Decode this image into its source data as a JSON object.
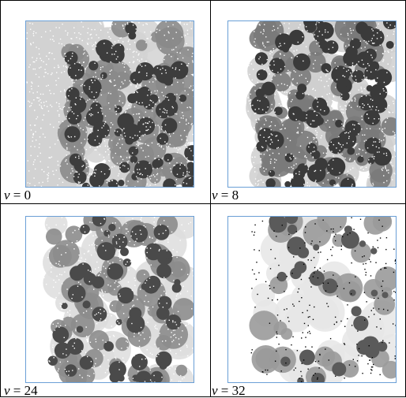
{
  "panels": [
    {
      "id": "p0",
      "label_var": "v",
      "label_rest": " = 0",
      "colors": {
        "dark": "#3d3d3d",
        "mid": "#8a8a8a",
        "light": "#d2d2d2",
        "dot": "#ffffff"
      }
    },
    {
      "id": "p1",
      "label_var": "v",
      "label_rest": " = 8",
      "colors": {
        "dark": "#3a3a3a",
        "mid": "#7a7a7a",
        "light": "#cfcfcf",
        "dot": "#ffffff"
      }
    },
    {
      "id": "p2",
      "label_var": "v",
      "label_rest": " = 24",
      "colors": {
        "dark": "#4a4a4a",
        "mid": "#8c8c8c",
        "light": "#dddddd",
        "dot": "#ffffff"
      }
    },
    {
      "id": "p3",
      "label_var": "v",
      "label_rest": " = 32",
      "colors": {
        "dark": "#5a5a5a",
        "mid": "#9a9a9a",
        "light": "#e6e6e6",
        "dot": "#000000"
      }
    }
  ],
  "border_color": "#6a9fd6"
}
